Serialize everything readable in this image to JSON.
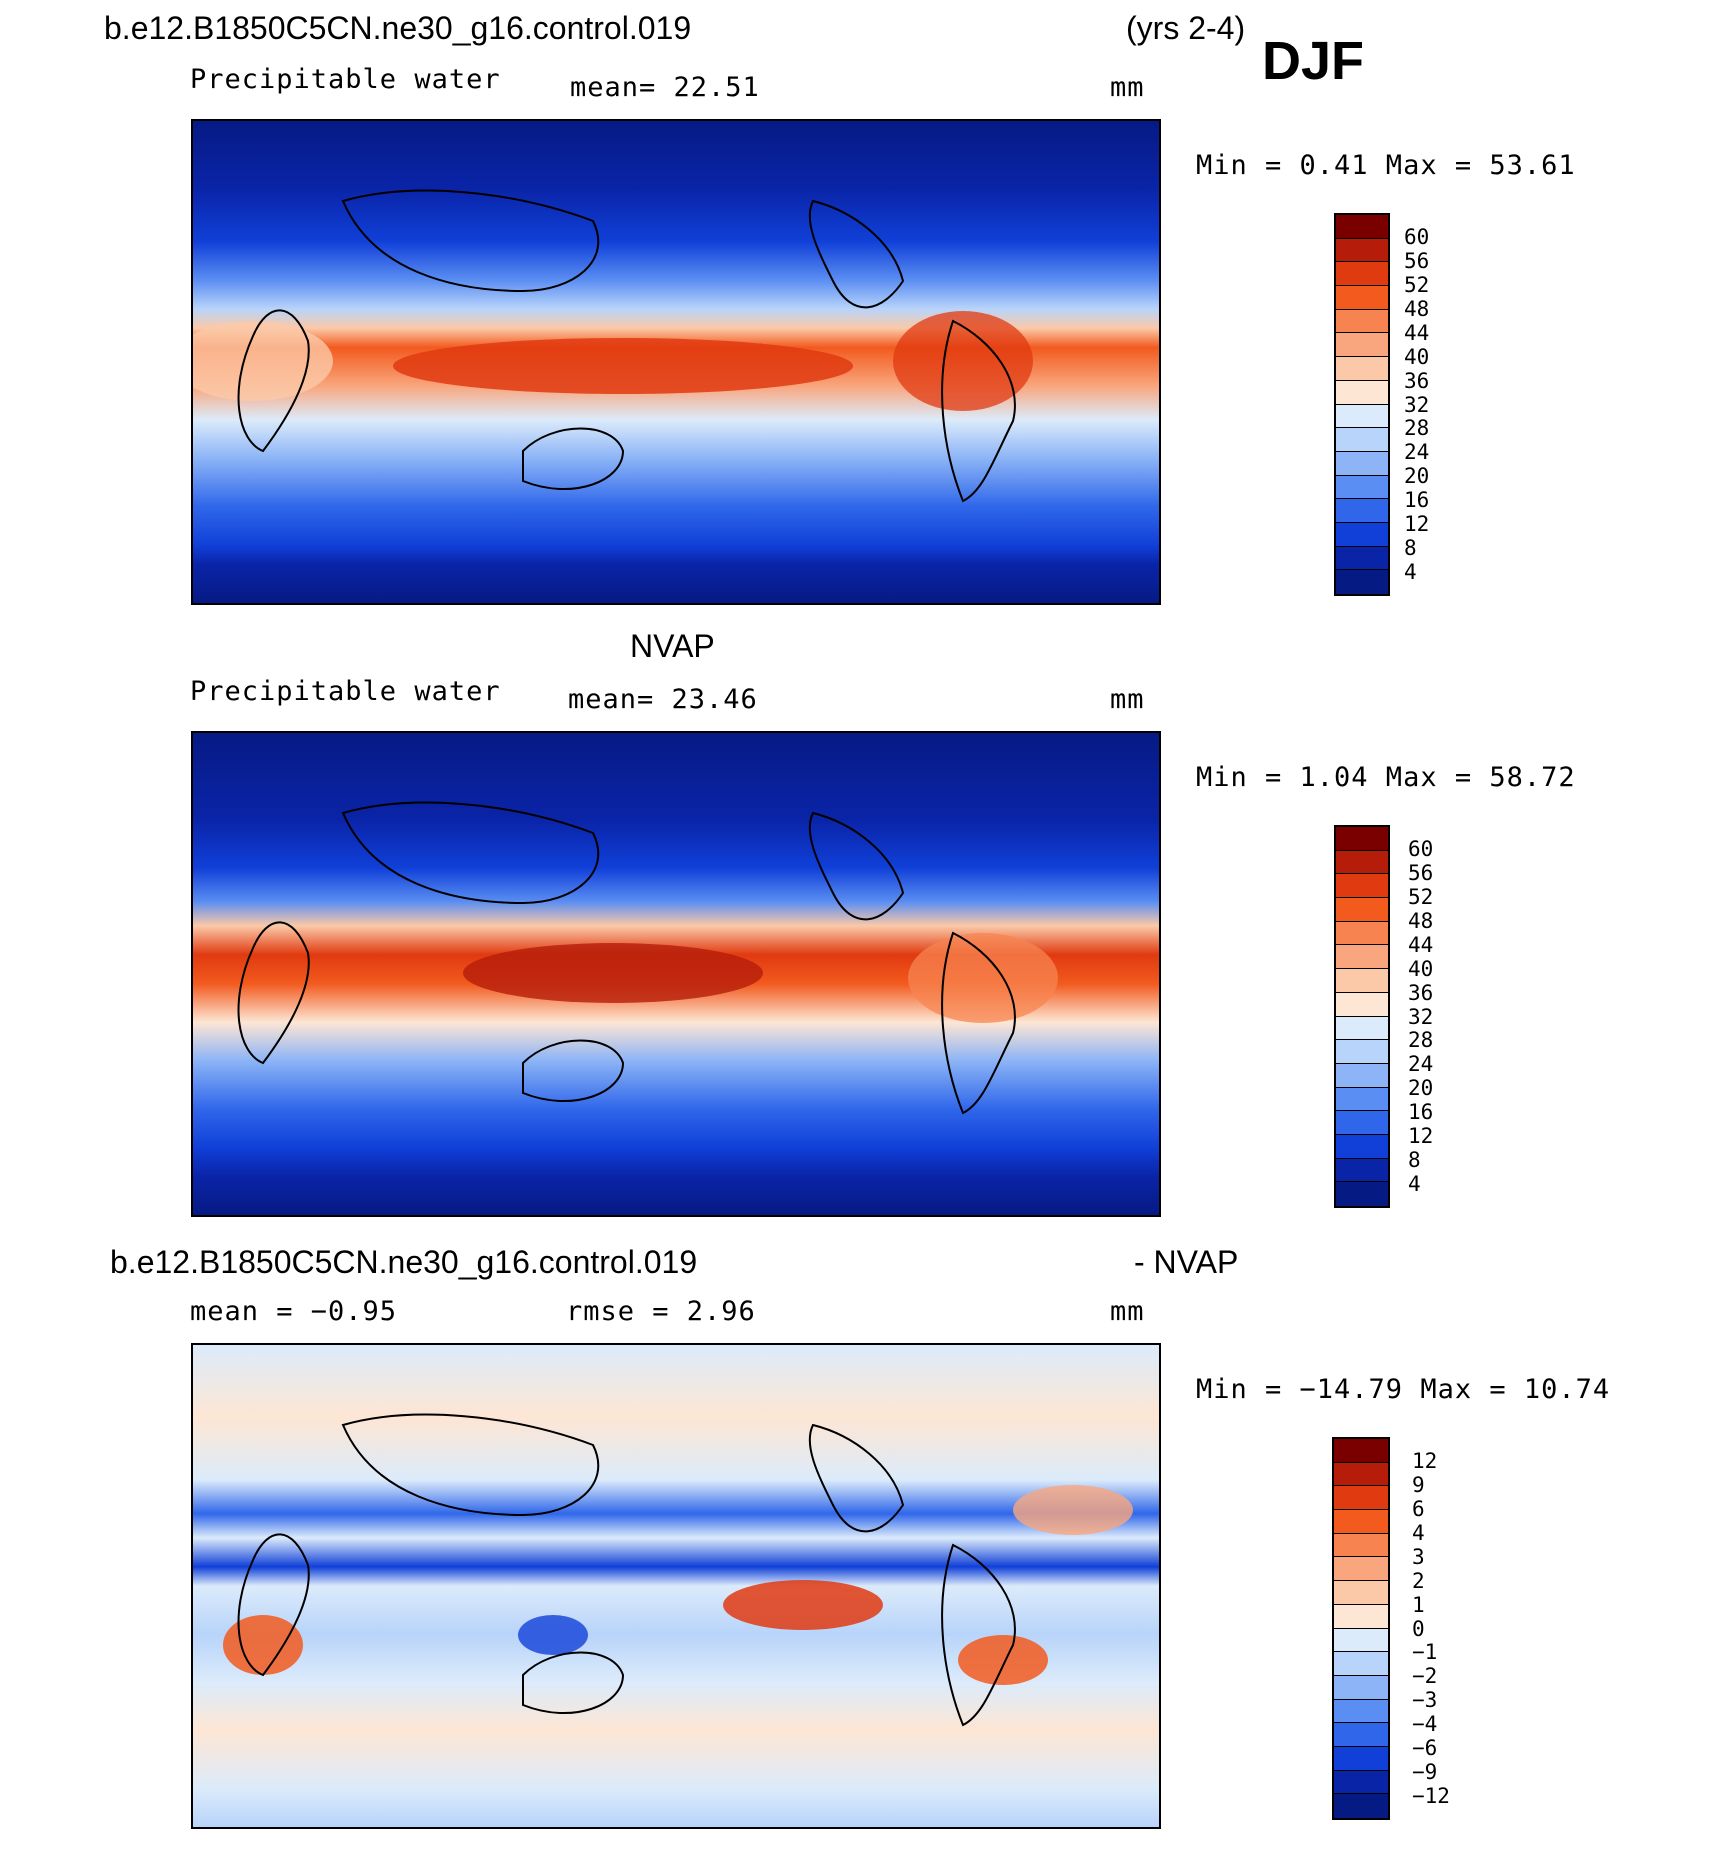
{
  "page": {
    "case_name": "b.e12.B1850C5CN.ne30_g16.control.019",
    "years": "(yrs 2-4)",
    "season": "DJF"
  },
  "panel_top": {
    "variable": "Precipitable water",
    "mean_text": "mean=  22.51",
    "units": "mm",
    "minmax_text": "Min =    0.41  Max =   53.61",
    "colorbar": {
      "labels": [
        "60",
        "56",
        "52",
        "48",
        "44",
        "40",
        "36",
        "32",
        "28",
        "24",
        "20",
        "16",
        "12",
        "8",
        "4"
      ],
      "colors": [
        "#7a0000",
        "#b51d0a",
        "#e03a10",
        "#f25a1e",
        "#f78450",
        "#f9a67e",
        "#fbc9a8",
        "#fde6d4",
        "#dcebfb",
        "#b8d4fa",
        "#8cb4f6",
        "#5b8ef2",
        "#3067ea",
        "#1040d8",
        "#0a24a8",
        "#061a84"
      ]
    }
  },
  "panel_mid": {
    "title": "NVAP",
    "variable": "Precipitable water",
    "mean_text": "mean=  23.46",
    "units": "mm",
    "minmax_text": "Min =    1.04  Max =   58.72",
    "colorbar": {
      "labels": [
        "60",
        "56",
        "52",
        "48",
        "44",
        "40",
        "36",
        "32",
        "28",
        "24",
        "20",
        "16",
        "12",
        "8",
        "4"
      ],
      "colors": [
        "#7a0000",
        "#b51d0a",
        "#e03a10",
        "#f25a1e",
        "#f78450",
        "#f9a67e",
        "#fbc9a8",
        "#fde6d4",
        "#dcebfb",
        "#b8d4fa",
        "#8cb4f6",
        "#5b8ef2",
        "#3067ea",
        "#1040d8",
        "#0a24a8",
        "#061a84"
      ]
    }
  },
  "panel_bot": {
    "title_left": "b.e12.B1850C5CN.ne30_g16.control.019",
    "title_right": "- NVAP",
    "mean_text": "mean =   −0.95",
    "rmse_text": "rmse =    2.96",
    "units": "mm",
    "minmax_text": "Min = −14.79  Max =   10.74",
    "colorbar": {
      "labels": [
        "12",
        "9",
        "6",
        "4",
        "3",
        "2",
        "1",
        "0",
        "−1",
        "−2",
        "−3",
        "−4",
        "−6",
        "−9",
        "−12"
      ],
      "colors": [
        "#7a0000",
        "#b51d0a",
        "#e03a10",
        "#f25a1e",
        "#f78450",
        "#f9a67e",
        "#fbc9a8",
        "#fde6d4",
        "#dcebfb",
        "#b8d4fa",
        "#8cb4f6",
        "#5b8ef2",
        "#3067ea",
        "#1040d8",
        "#0a24a8",
        "#061a84"
      ]
    }
  }
}
